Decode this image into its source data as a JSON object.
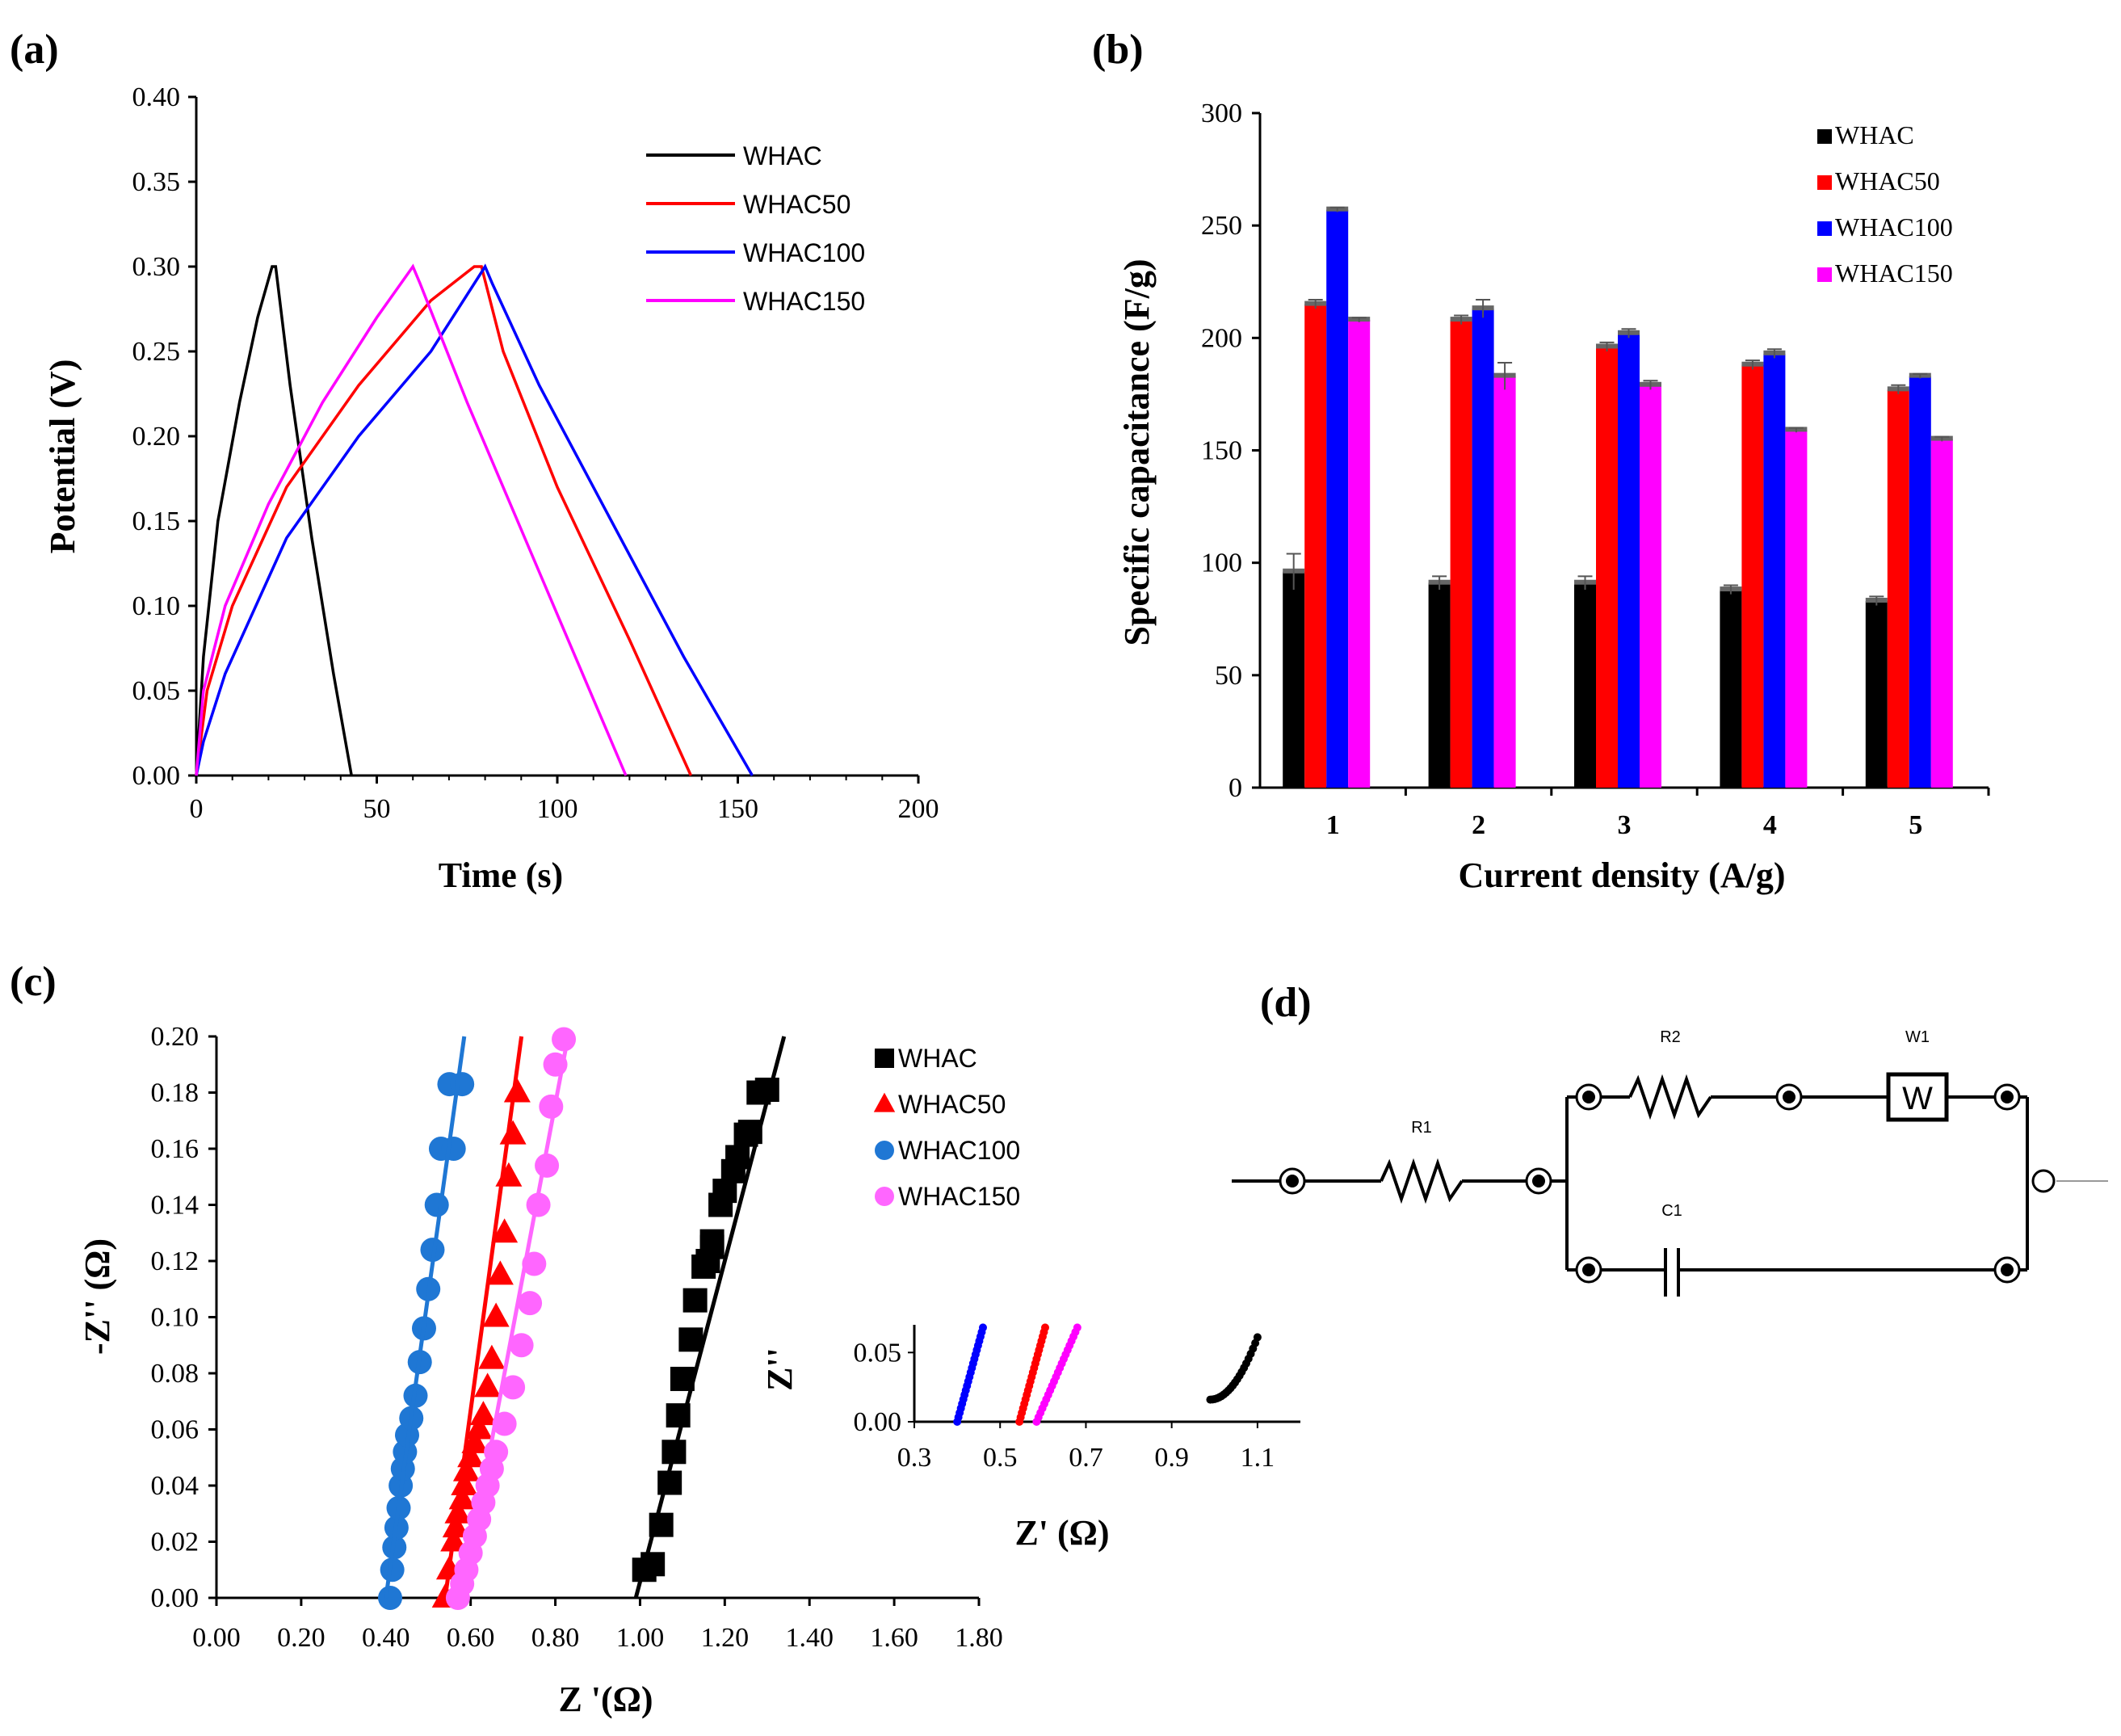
{
  "colors": {
    "WHAC": "#000000",
    "WHAC50": "#ff0000",
    "WHAC100": "#0000ff",
    "WHAC150": "#ff00ff",
    "WHAC100_eis": "#1f77d4",
    "WHAC150_eis": "#ff66ff"
  },
  "chart_data": [
    {
      "panel": "(a)",
      "type": "line",
      "xlabel": "Time (s)",
      "ylabel": "Potential (V)",
      "xlim": [
        0,
        200
      ],
      "ylim": [
        0,
        0.4
      ],
      "xticks": [
        "0",
        "50",
        "100",
        "150",
        "200"
      ],
      "yticks": [
        "0.00",
        "0.05",
        "0.10",
        "0.15",
        "0.20",
        "0.25",
        "0.30",
        "0.35",
        "0.40"
      ],
      "legend": [
        "WHAC",
        "WHAC50",
        "WHAC100",
        "WHAC150"
      ],
      "series": [
        {
          "name": "WHAC",
          "x": [
            0,
            2,
            6,
            12,
            17,
            21,
            22,
            26,
            32,
            38,
            43
          ],
          "y": [
            0.0,
            0.07,
            0.15,
            0.22,
            0.27,
            0.3,
            0.3,
            0.23,
            0.14,
            0.06,
            0.0
          ]
        },
        {
          "name": "WHAC50",
          "x": [
            0,
            3,
            10,
            25,
            45,
            65,
            77,
            79,
            85,
            100,
            120,
            137
          ],
          "y": [
            0.0,
            0.05,
            0.1,
            0.17,
            0.23,
            0.28,
            0.3,
            0.3,
            0.25,
            0.17,
            0.08,
            0.0
          ]
        },
        {
          "name": "WHAC100",
          "x": [
            0,
            2,
            8,
            25,
            45,
            65,
            80,
            82,
            95,
            115,
            135,
            154
          ],
          "y": [
            0.0,
            0.02,
            0.06,
            0.14,
            0.2,
            0.25,
            0.3,
            0.29,
            0.23,
            0.15,
            0.07,
            0.0
          ]
        },
        {
          "name": "WHAC150",
          "x": [
            0,
            2,
            8,
            20,
            35,
            50,
            60,
            62,
            75,
            95,
            119
          ],
          "y": [
            0.0,
            0.05,
            0.1,
            0.16,
            0.22,
            0.27,
            0.3,
            0.29,
            0.22,
            0.12,
            0.0
          ]
        }
      ]
    },
    {
      "panel": "(b)",
      "type": "bar",
      "xlabel": "Current density (A/g)",
      "ylabel": "Specific capacitance (F/g)",
      "ylim": [
        0,
        300
      ],
      "yticks": [
        "0",
        "50",
        "100",
        "150",
        "200",
        "250",
        "300"
      ],
      "categories": [
        "1",
        "2",
        "3",
        "4",
        "5"
      ],
      "series": [
        {
          "name": "WHAC",
          "values": [
            96,
            91,
            91,
            88,
            83
          ],
          "errors": [
            8,
            3,
            3,
            2,
            2
          ]
        },
        {
          "name": "WHAC50",
          "values": [
            215,
            208,
            196,
            188,
            177
          ],
          "errors": [
            2,
            2,
            2,
            2,
            2
          ]
        },
        {
          "name": "WHAC100",
          "values": [
            257,
            213,
            202,
            193,
            183
          ],
          "errors": [
            1,
            4,
            2,
            2,
            1
          ]
        },
        {
          "name": "WHAC150",
          "values": [
            208,
            183,
            179,
            159,
            155
          ],
          "errors": [
            1,
            6,
            2,
            1,
            1
          ]
        }
      ]
    },
    {
      "panel": "(c)",
      "type": "scatter",
      "xlabel": "Z '(Ω)",
      "ylabel": "-Z'' (Ω)",
      "xlim": [
        0,
        1.8
      ],
      "ylim": [
        0,
        0.2
      ],
      "xticks": [
        "0.00",
        "0.20",
        "0.40",
        "0.60",
        "0.80",
        "1.00",
        "1.20",
        "1.40",
        "1.60",
        "1.80"
      ],
      "yticks": [
        "0.00",
        "0.02",
        "0.04",
        "0.06",
        "0.08",
        "0.10",
        "0.12",
        "0.14",
        "0.16",
        "0.18",
        "0.20"
      ],
      "legend": [
        "WHAC",
        "WHAC50",
        "WHAC100",
        "WHAC150"
      ],
      "series": [
        {
          "name": "WHAC",
          "marker": "square",
          "x": [
            1.01,
            1.03,
            1.05,
            1.07,
            1.08,
            1.09,
            1.1,
            1.12,
            1.13,
            1.15,
            1.16,
            1.17,
            1.17,
            1.19,
            1.2,
            1.22,
            1.23,
            1.25,
            1.26,
            1.28,
            1.3
          ],
          "y": [
            0.01,
            0.012,
            0.026,
            0.041,
            0.052,
            0.065,
            0.078,
            0.092,
            0.106,
            0.118,
            0.12,
            0.125,
            0.127,
            0.14,
            0.145,
            0.152,
            0.157,
            0.165,
            0.166,
            0.18,
            0.181
          ],
          "fit": {
            "x": [
              0.99,
              1.34
            ],
            "y": [
              0.0,
              0.2
            ]
          }
        },
        {
          "name": "WHAC50",
          "marker": "triangle",
          "x": [
            0.54,
            0.55,
            0.56,
            0.565,
            0.57,
            0.58,
            0.585,
            0.59,
            0.6,
            0.61,
            0.62,
            0.63,
            0.64,
            0.65,
            0.66,
            0.67,
            0.68,
            0.69,
            0.7,
            0.71
          ],
          "y": [
            0.0,
            0.01,
            0.02,
            0.025,
            0.03,
            0.035,
            0.04,
            0.045,
            0.05,
            0.055,
            0.06,
            0.065,
            0.075,
            0.085,
            0.1,
            0.115,
            0.13,
            0.15,
            0.165,
            0.18
          ],
          "fit": {
            "x": [
              0.54,
              0.72
            ],
            "y": [
              0.0,
              0.2
            ]
          }
        },
        {
          "name": "WHAC100",
          "marker": "circle",
          "x": [
            0.41,
            0.415,
            0.42,
            0.425,
            0.43,
            0.435,
            0.44,
            0.445,
            0.45,
            0.46,
            0.47,
            0.48,
            0.49,
            0.5,
            0.51,
            0.52,
            0.53,
            0.55,
            0.56,
            0.58
          ],
          "y": [
            0.0,
            0.01,
            0.018,
            0.025,
            0.032,
            0.04,
            0.046,
            0.052,
            0.058,
            0.064,
            0.072,
            0.084,
            0.096,
            0.11,
            0.124,
            0.14,
            0.16,
            0.183,
            0.16,
            0.183
          ],
          "fit": {
            "x": [
              0.4,
              0.585
            ],
            "y": [
              0.0,
              0.2
            ]
          }
        },
        {
          "name": "WHAC150",
          "marker": "circle",
          "x": [
            0.57,
            0.58,
            0.59,
            0.6,
            0.61,
            0.62,
            0.63,
            0.64,
            0.65,
            0.66,
            0.68,
            0.7,
            0.72,
            0.74,
            0.75,
            0.76,
            0.78,
            0.79,
            0.8,
            0.82
          ],
          "y": [
            0.0,
            0.005,
            0.01,
            0.016,
            0.022,
            0.028,
            0.034,
            0.04,
            0.046,
            0.052,
            0.062,
            0.075,
            0.09,
            0.105,
            0.119,
            0.14,
            0.154,
            0.175,
            0.19,
            0.199
          ],
          "fit": {
            "x": [
              0.58,
              0.83
            ],
            "y": [
              0.0,
              0.2
            ]
          }
        }
      ],
      "inset": {
        "xlabel": "Z' (Ω)",
        "ylabel": "Z''",
        "xlim": [
          0.3,
          1.2
        ],
        "ylim": [
          0,
          0.07
        ],
        "xticks": [
          "0.3",
          "0.5",
          "0.7",
          "0.9",
          "1.1"
        ],
        "yticks": [
          "0.00",
          "0.05"
        ]
      }
    }
  ],
  "circuit": {
    "panel": "(d)",
    "labels": [
      "R1",
      "R2",
      "W1",
      "C1"
    ],
    "warburg_symbol": "W"
  }
}
